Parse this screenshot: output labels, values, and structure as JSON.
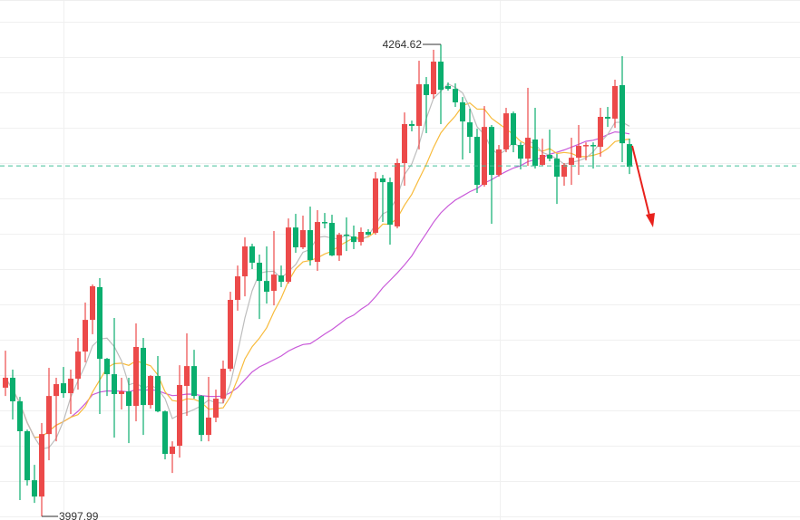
{
  "chart_data": {
    "type": "candlestick",
    "up_color": "#ec4a4a",
    "down_color": "#0aae6e",
    "ma_colors": {
      "ma5": "#bdbdbd",
      "ma10": "#f8bb3c",
      "ma30": "#c95ad9"
    },
    "current_price": 4196.0,
    "current_price_color": "#44c09a",
    "high_label": "4264.62",
    "low_label": "3997.99",
    "high_value": 4264.62,
    "low_value": 3997.99,
    "arrow_color": "#e8211c",
    "grid": true,
    "candles": [
      [
        4070.7,
        4091.6,
        4066.0,
        4076.3
      ],
      [
        4076.3,
        4080.9,
        4052.7,
        4063.0
      ],
      [
        4063.0,
        4065.5,
        4007.2,
        4046.1
      ],
      [
        4046.1,
        4047.0,
        4015.4,
        4018.4
      ],
      [
        4018.4,
        4027.1,
        4005.6,
        4009.2
      ],
      [
        4009.2,
        4050.7,
        3997.99,
        4044.5
      ],
      [
        4044.5,
        4081.9,
        4029.7,
        4066.0
      ],
      [
        4066.0,
        4076.3,
        4040.4,
        4072.7
      ],
      [
        4073.2,
        4082.4,
        4065.0,
        4067.6
      ],
      [
        4067.6,
        4080.9,
        4055.8,
        4075.8
      ],
      [
        4075.8,
        4098.8,
        4069.6,
        4091.1
      ],
      [
        4091.1,
        4118.8,
        4085.0,
        4109.0
      ],
      [
        4109.0,
        4129.0,
        4100.9,
        4128.0
      ],
      [
        4127.5,
        4132.6,
        4055.8,
        4087.0
      ],
      [
        4087.0,
        4087.5,
        4066.0,
        4078.3
      ],
      [
        4078.3,
        4110.1,
        4042.5,
        4067.1
      ],
      [
        4067.1,
        4076.3,
        4058.4,
        4068.6
      ],
      [
        4068.6,
        4076.3,
        4039.4,
        4060.4
      ],
      [
        4060.4,
        4107.0,
        4051.7,
        4093.7
      ],
      [
        4093.2,
        4098.8,
        4044.0,
        4060.9
      ],
      [
        4060.9,
        4077.8,
        4058.9,
        4077.3
      ],
      [
        4077.3,
        4088.6,
        4056.8,
        4057.3
      ],
      [
        4057.3,
        4057.8,
        4030.2,
        4033.3
      ],
      [
        4033.3,
        4040.4,
        4022.5,
        4037.4
      ],
      [
        4037.9,
        4083.4,
        4031.2,
        4072.2
      ],
      [
        4071.7,
        4101.4,
        4054.8,
        4082.9
      ],
      [
        4082.9,
        4092.1,
        4064.5,
        4066.0
      ],
      [
        4066.0,
        4066.5,
        4040.4,
        4044.0
      ],
      [
        4044.0,
        4076.8,
        4040.4,
        4053.8
      ],
      [
        4053.8,
        4069.6,
        4051.2,
        4064.5
      ],
      [
        4064.5,
        4086.0,
        4062.0,
        4081.4
      ],
      [
        4081.4,
        4124.9,
        4079.9,
        4120.3
      ],
      [
        4120.3,
        4139.7,
        4114.2,
        4133.6
      ],
      [
        4133.6,
        4155.6,
        4122.3,
        4150.5
      ],
      [
        4150.5,
        4152.0,
        4137.7,
        4141.3
      ],
      [
        4141.3,
        4145.9,
        4109.5,
        4131.0
      ],
      [
        4131.0,
        4150.5,
        4118.2,
        4124.9
      ],
      [
        4125.4,
        4159.2,
        4117.2,
        4134.6
      ],
      [
        4134.1,
        4139.7,
        4127.5,
        4130.5
      ],
      [
        4130.5,
        4166.3,
        4129.5,
        4161.2
      ],
      [
        4161.2,
        4168.9,
        4146.9,
        4150.0
      ],
      [
        4150.0,
        4167.9,
        4149.0,
        4159.7
      ],
      [
        4159.7,
        4173.0,
        4139.7,
        4142.8
      ],
      [
        4141.8,
        4171.0,
        4136.7,
        4164.3
      ],
      [
        4164.3,
        4169.4,
        4160.7,
        4163.8
      ],
      [
        4163.8,
        4168.4,
        4145.0,
        4145.4
      ],
      [
        4145.4,
        4158.2,
        4142.3,
        4157.1
      ],
      [
        4157.1,
        4166.9,
        4147.9,
        4156.6
      ],
      [
        4156.1,
        4162.3,
        4149.0,
        4153.0
      ],
      [
        4153.0,
        4161.2,
        4151.0,
        4158.7
      ],
      [
        4158.7,
        4160.2,
        4156.9,
        4157.1
      ],
      [
        4158.2,
        4192.5,
        4157.1,
        4188.9
      ],
      [
        4188.9,
        4190.9,
        4164.3,
        4186.8
      ],
      [
        4186.8,
        4189.4,
        4151.5,
        4162.8
      ],
      [
        4161.8,
        4200.1,
        4160.7,
        4197.6
      ],
      [
        4197.6,
        4226.2,
        4184.8,
        4219.6
      ],
      [
        4219.6,
        4221.6,
        4215.5,
        4218.6
      ],
      [
        4218.6,
        4255.4,
        4205.3,
        4242.1
      ],
      [
        4242.1,
        4246.2,
        4214.5,
        4236.0
      ],
      [
        4236.5,
        4261.6,
        4233.9,
        4254.9
      ],
      [
        4254.9,
        4264.62,
        4219.6,
        4239.0
      ],
      [
        4241.1,
        4243.1,
        4238.5,
        4239.5
      ],
      [
        4239.5,
        4242.6,
        4229.3,
        4231.9
      ],
      [
        4231.9,
        4234.9,
        4199.6,
        4221.1
      ],
      [
        4220.6,
        4228.3,
        4203.2,
        4212.4
      ],
      [
        4212.4,
        4217.0,
        4180.7,
        4185.3
      ],
      [
        4185.3,
        4229.8,
        4184.3,
        4218.0
      ],
      [
        4218.0,
        4219.1,
        4163.3,
        4190.9
      ],
      [
        4190.9,
        4207.8,
        4189.9,
        4205.3
      ],
      [
        4205.3,
        4228.8,
        4203.7,
        4225.7
      ],
      [
        4225.7,
        4226.7,
        4203.7,
        4207.8
      ],
      [
        4207.8,
        4209.3,
        4194.0,
        4200.1
      ],
      [
        4200.1,
        4240.1,
        4196.0,
        4211.9
      ],
      [
        4210.9,
        4228.8,
        4194.5,
        4196.0
      ],
      [
        4196.6,
        4211.4,
        4196.0,
        4202.2
      ],
      [
        4202.2,
        4216.5,
        4198.6,
        4200.1
      ],
      [
        4200.1,
        4202.7,
        4174.5,
        4189.9
      ],
      [
        4189.9,
        4197.6,
        4184.8,
        4196.6
      ],
      [
        4196.6,
        4211.9,
        4185.3,
        4200.6
      ],
      [
        4200.6,
        4219.1,
        4190.9,
        4207.3
      ],
      [
        4207.3,
        4209.3,
        4199.1,
        4207.8
      ],
      [
        4207.8,
        4209.3,
        4194.5,
        4207.3
      ],
      [
        4206.8,
        4228.8,
        4201.2,
        4223.7
      ],
      [
        4223.7,
        4229.3,
        4218.0,
        4222.7
      ],
      [
        4222.7,
        4244.7,
        4217.5,
        4241.1
      ],
      [
        4241.6,
        4258.0,
        4198.1,
        4208.8
      ],
      [
        4208.3,
        4211.4,
        4191.4,
        4195.5
      ]
    ]
  }
}
